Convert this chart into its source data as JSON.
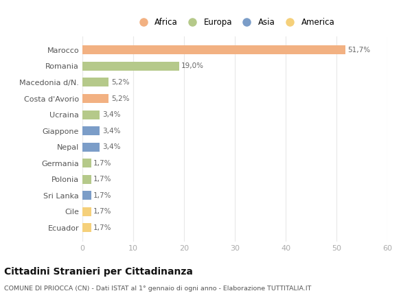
{
  "categories": [
    "Marocco",
    "Romania",
    "Macedonia d/N.",
    "Costa d'Avorio",
    "Ucraina",
    "Giappone",
    "Nepal",
    "Germania",
    "Polonia",
    "Sri Lanka",
    "Cile",
    "Ecuador"
  ],
  "values": [
    51.7,
    19.0,
    5.2,
    5.2,
    3.4,
    3.4,
    3.4,
    1.7,
    1.7,
    1.7,
    1.7,
    1.7
  ],
  "labels": [
    "51,7%",
    "19,0%",
    "5,2%",
    "5,2%",
    "3,4%",
    "3,4%",
    "3,4%",
    "1,7%",
    "1,7%",
    "1,7%",
    "1,7%",
    "1,7%"
  ],
  "colors": [
    "#F2B182",
    "#B5C98A",
    "#B5C98A",
    "#F2B182",
    "#B5C98A",
    "#7B9DC8",
    "#7B9DC8",
    "#B5C98A",
    "#B5C98A",
    "#7B9DC8",
    "#F5D07A",
    "#F5D07A"
  ],
  "legend_labels": [
    "Africa",
    "Europa",
    "Asia",
    "America"
  ],
  "legend_colors": [
    "#F2B182",
    "#B5C98A",
    "#7B9DC8",
    "#F5D07A"
  ],
  "title": "Cittadini Stranieri per Cittadinanza",
  "subtitle": "COMUNE DI PRIOCCA (CN) - Dati ISTAT al 1° gennaio di ogni anno - Elaborazione TUTTITALIA.IT",
  "xlim": [
    0,
    60
  ],
  "xticks": [
    0,
    10,
    20,
    30,
    40,
    50,
    60
  ],
  "bg_color": "#ffffff",
  "grid_color": "#e8e8e8",
  "bar_height": 0.55,
  "label_color": "#666666",
  "ytick_color": "#555555",
  "xtick_color": "#aaaaaa"
}
